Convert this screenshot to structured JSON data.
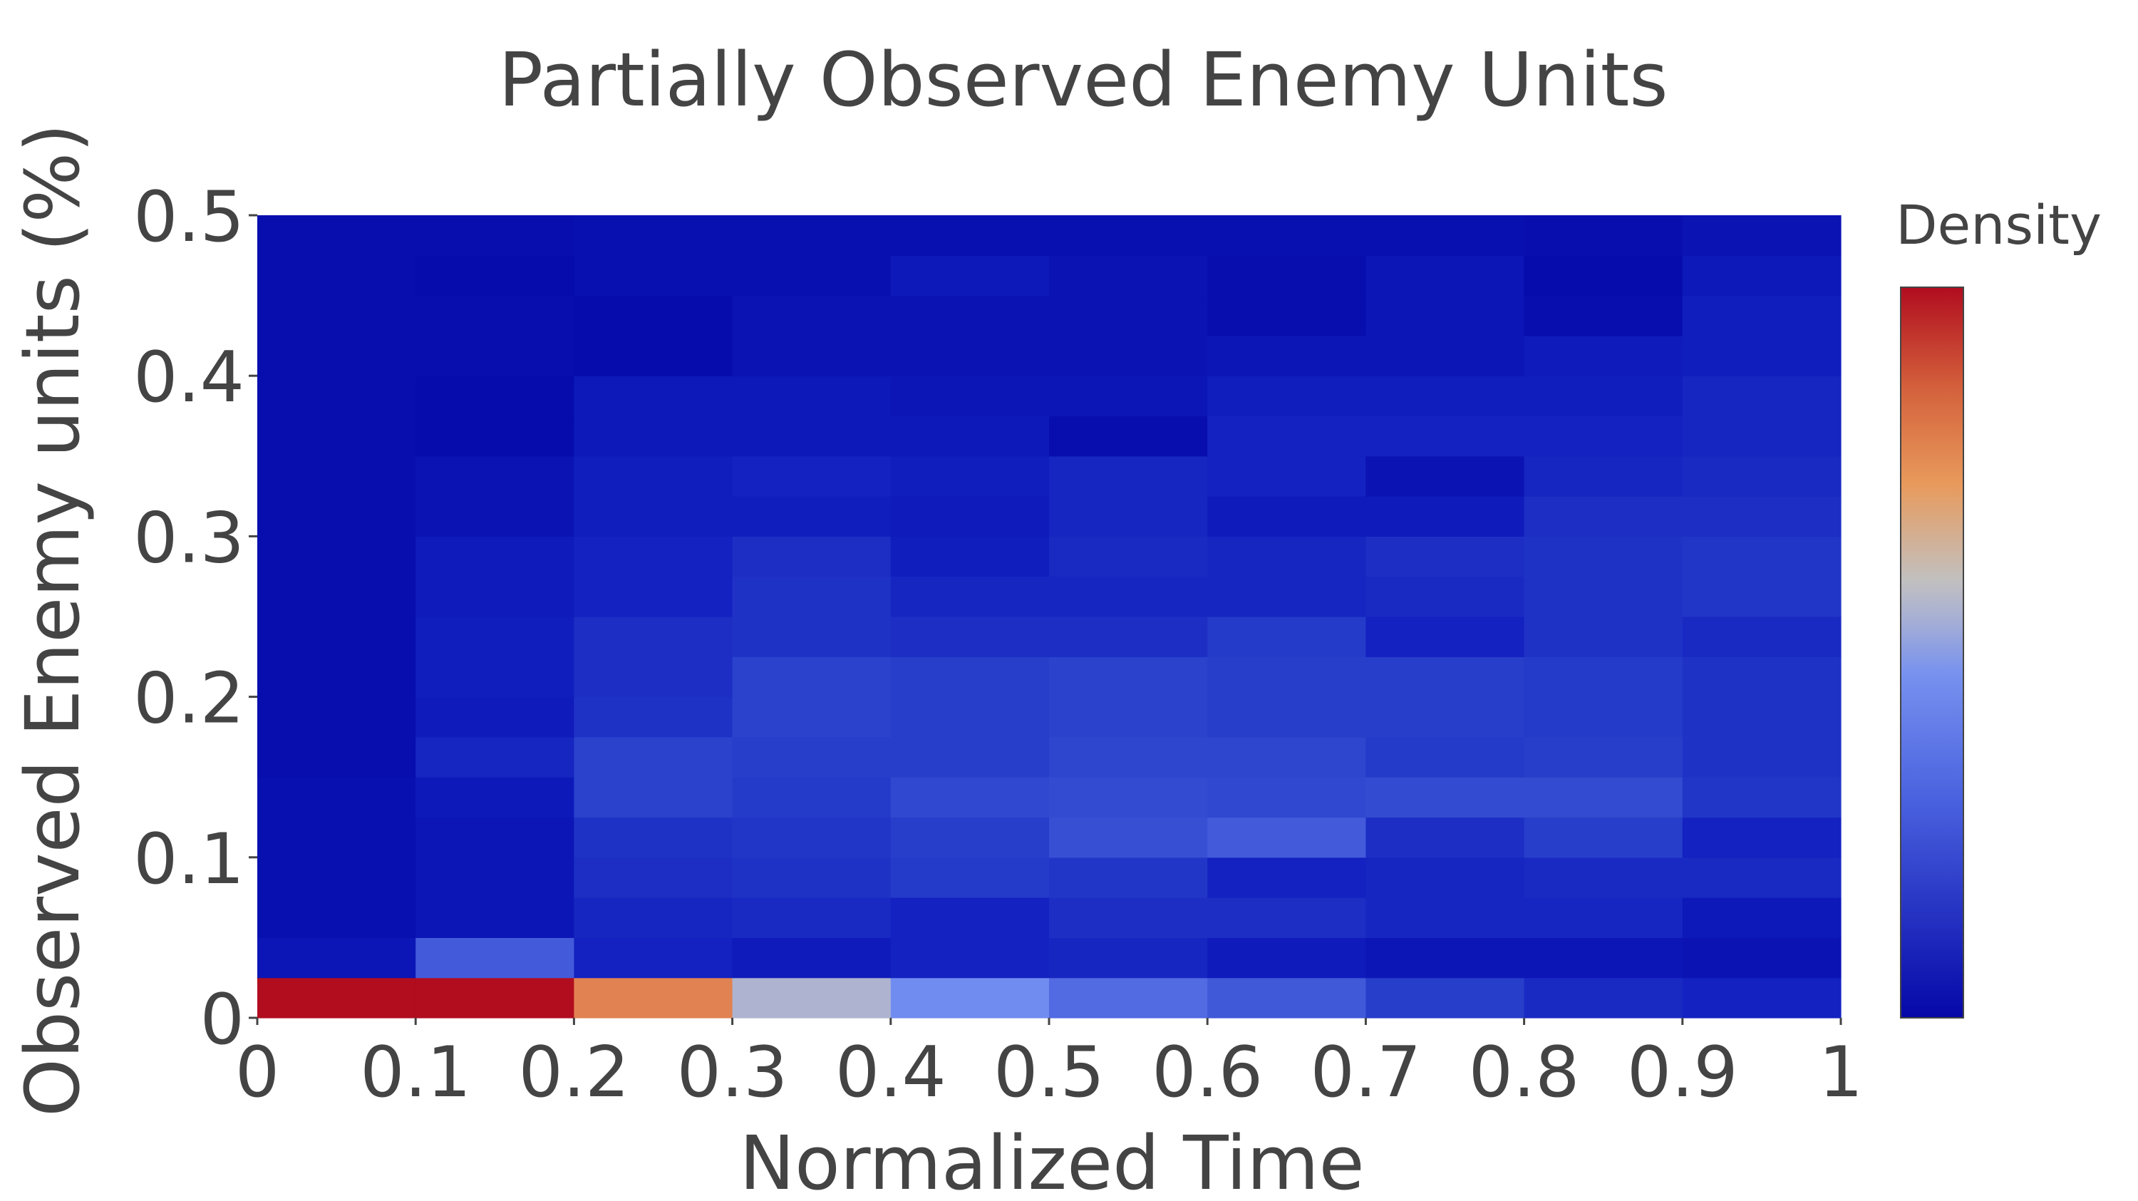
{
  "chart_data": {
    "type": "heatmap",
    "title": "Partially Observed Enemy Units",
    "xlabel": "Normalized Time",
    "ylabel": "Observed Enemy units (%)",
    "colorbar_title": "Density",
    "colorscale": [
      "#0508a8",
      "#6e8ff5",
      "#c0bfc0",
      "#e89a5c",
      "#b10d1f"
    ],
    "zrange": [
      0,
      1
    ],
    "xlim": [
      0,
      1
    ],
    "ylim": [
      0,
      0.5
    ],
    "x_ticks": [
      "0",
      "0.1",
      "0.2",
      "0.3",
      "0.4",
      "0.5",
      "0.6",
      "0.7",
      "0.8",
      "0.9",
      "1"
    ],
    "y_ticks": [
      "0",
      "0.1",
      "0.2",
      "0.3",
      "0.4",
      "0.5"
    ],
    "x_bin_edges": [
      0,
      0.1,
      0.2,
      0.3,
      0.4,
      0.5,
      0.6,
      0.7,
      0.8,
      0.9,
      1.0
    ],
    "y_bin_edges": [
      0,
      0.025,
      0.05,
      0.075,
      0.1,
      0.125,
      0.15,
      0.175,
      0.2,
      0.225,
      0.25,
      0.275,
      0.3,
      0.325,
      0.35,
      0.375,
      0.4,
      0.425,
      0.45,
      0.475,
      0.5
    ],
    "z": [
      [
        1.0,
        1.0,
        0.83,
        0.56,
        0.4,
        0.32,
        0.26,
        0.16,
        0.11,
        0.09
      ],
      [
        0.05,
        0.27,
        0.09,
        0.07,
        0.09,
        0.1,
        0.07,
        0.05,
        0.05,
        0.04
      ],
      [
        0.03,
        0.05,
        0.1,
        0.11,
        0.09,
        0.12,
        0.12,
        0.1,
        0.1,
        0.06
      ],
      [
        0.03,
        0.05,
        0.12,
        0.13,
        0.15,
        0.14,
        0.09,
        0.1,
        0.11,
        0.11
      ],
      [
        0.03,
        0.05,
        0.13,
        0.14,
        0.16,
        0.22,
        0.27,
        0.12,
        0.16,
        0.09
      ],
      [
        0.03,
        0.06,
        0.17,
        0.15,
        0.19,
        0.2,
        0.19,
        0.2,
        0.2,
        0.14
      ],
      [
        0.02,
        0.1,
        0.17,
        0.16,
        0.16,
        0.18,
        0.18,
        0.15,
        0.16,
        0.13
      ],
      [
        0.02,
        0.07,
        0.13,
        0.17,
        0.16,
        0.17,
        0.16,
        0.16,
        0.15,
        0.13
      ],
      [
        0.02,
        0.08,
        0.12,
        0.17,
        0.16,
        0.17,
        0.16,
        0.16,
        0.15,
        0.13
      ],
      [
        0.02,
        0.08,
        0.12,
        0.13,
        0.12,
        0.12,
        0.15,
        0.09,
        0.13,
        0.11
      ],
      [
        0.02,
        0.07,
        0.09,
        0.13,
        0.1,
        0.1,
        0.1,
        0.11,
        0.13,
        0.14
      ],
      [
        0.02,
        0.07,
        0.09,
        0.12,
        0.08,
        0.11,
        0.1,
        0.12,
        0.13,
        0.14
      ],
      [
        0.02,
        0.04,
        0.08,
        0.08,
        0.07,
        0.1,
        0.07,
        0.07,
        0.12,
        0.12
      ],
      [
        0.02,
        0.04,
        0.08,
        0.09,
        0.08,
        0.1,
        0.09,
        0.04,
        0.1,
        0.11
      ],
      [
        0.02,
        0.01,
        0.06,
        0.06,
        0.06,
        0.02,
        0.09,
        0.09,
        0.09,
        0.1
      ],
      [
        0.02,
        0.01,
        0.06,
        0.06,
        0.05,
        0.05,
        0.08,
        0.08,
        0.08,
        0.1
      ],
      [
        0.02,
        0.02,
        0.01,
        0.04,
        0.04,
        0.04,
        0.05,
        0.05,
        0.07,
        0.08
      ],
      [
        0.02,
        0.02,
        0.01,
        0.04,
        0.04,
        0.04,
        0.02,
        0.05,
        0.02,
        0.08
      ],
      [
        0.02,
        0.01,
        0.03,
        0.03,
        0.06,
        0.04,
        0.02,
        0.05,
        0.01,
        0.06
      ],
      [
        0.02,
        0.02,
        0.03,
        0.03,
        0.03,
        0.03,
        0.03,
        0.03,
        0.02,
        0.04
      ]
    ]
  }
}
